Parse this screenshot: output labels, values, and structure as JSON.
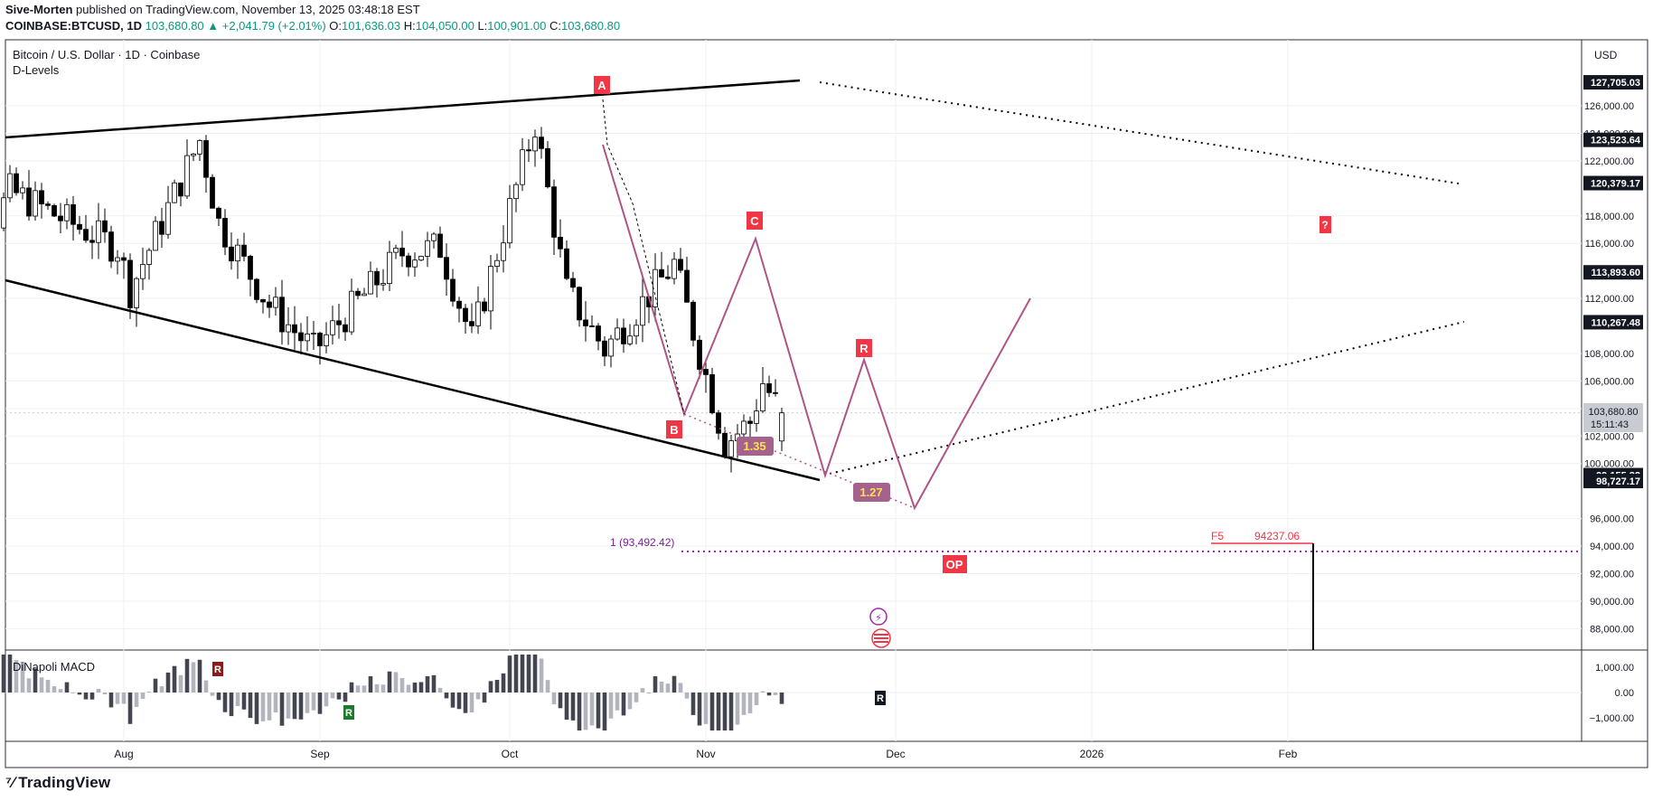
{
  "header": {
    "author": "Sive-Morten",
    "published": "published on TradingView.com, November 13, 2025 03:48:18 EST",
    "symbol": "COINBASE:BTCUSD, 1D",
    "change": "103,680.80 ▲ +2,041.79 (+2.01%)",
    "o_label": "O:",
    "o": "101,636.03",
    "h_label": "H:",
    "h": "104,050.00",
    "l_label": "L:",
    "l": "100,901.00",
    "c_label": "C:",
    "c": "103,680.80"
  },
  "legend": {
    "title": "Bitcoin / U.S. Dollar · 1D · Coinbase",
    "indicator": "D-Levels",
    "macd_title": "DiNapoli MACD"
  },
  "axis": {
    "currency": "USD",
    "time_labels": [
      "Aug",
      "Sep",
      "Oct",
      "Nov",
      "Dec",
      "2026",
      "Feb"
    ],
    "price_ticks": [
      "126,000.00",
      "124,000.00",
      "122,000.00",
      "118,000.00",
      "116,000.00",
      "112,000.00",
      "108,000.00",
      "106,000.00",
      "104,000.00",
      "102,000.00",
      "100,000.00",
      "96,000.00",
      "94,000.00",
      "92,000.00",
      "90,000.00",
      "88,000.00"
    ],
    "macd_ticks": [
      "1,000.00",
      "0.00",
      "−1,000.00"
    ],
    "price_tags": [
      "127,705.03",
      "123,523.64",
      "120,379.17",
      "113,893.60",
      "110,267.48",
      "99,155.32",
      "98,727.17"
    ],
    "last_price": "103,680.80",
    "countdown": "15:11:43"
  },
  "annotations": {
    "A": "A",
    "B": "B",
    "C": "C",
    "R": "R",
    "Q": "?",
    "ext1": "1.35",
    "ext2": "1.27",
    "level_1": "1 (93,492.42)",
    "f5": "F5",
    "f5_value": "94237.06",
    "op": "OP"
  },
  "brand": "TradingView",
  "colors": {
    "up": "#ffffff",
    "down": "#000000",
    "wick": "#000000",
    "pattern": "#b05487",
    "marker": "#f23645",
    "macd_dark": "#434651",
    "macd_light": "#b2b5be",
    "level_line": "#9c27b0",
    "f5": "#f23645"
  },
  "chart_data": {
    "type": "candlestick",
    "title": "Bitcoin / U.S. Dollar · 1D · Coinbase",
    "ylabel": "USD",
    "ylim": [
      86000,
      128500
    ],
    "x": [
      "2025-07-03",
      "2025-08-01",
      "2025-09-01",
      "2025-10-01",
      "2025-11-01",
      "2025-12-01",
      "2026-01-01",
      "2026-02-01"
    ],
    "close_path": [
      {
        "date": "2025-07-03",
        "close": 109500
      },
      {
        "date": "2025-07-14",
        "close": 119800
      },
      {
        "date": "2025-07-31",
        "close": 115700
      },
      {
        "date": "2025-08-02",
        "close": 112600
      },
      {
        "date": "2025-08-13",
        "close": 123500
      },
      {
        "date": "2025-08-16",
        "close": 117500
      },
      {
        "date": "2025-08-24",
        "close": 111500
      },
      {
        "date": "2025-08-31",
        "close": 108200
      },
      {
        "date": "2025-09-14",
        "close": 115300
      },
      {
        "date": "2025-09-20",
        "close": 115700
      },
      {
        "date": "2025-09-25",
        "close": 109000
      },
      {
        "date": "2025-10-01",
        "close": 118500
      },
      {
        "date": "2025-10-05",
        "close": 124700
      },
      {
        "date": "2025-10-10",
        "close": 112500
      },
      {
        "date": "2025-10-16",
        "close": 108300
      },
      {
        "date": "2025-10-27",
        "close": 114500
      },
      {
        "date": "2025-11-04",
        "close": 101500
      },
      {
        "date": "2025-11-08",
        "close": 103000
      },
      {
        "date": "2025-11-10",
        "close": 105900
      },
      {
        "date": "2025-11-13",
        "close": 103680.8
      }
    ],
    "last": {
      "open": 101636.03,
      "high": 104050.0,
      "low": 100901.0,
      "close": 103680.8,
      "change": 2041.79,
      "change_pct": 2.01
    },
    "price_levels": [
      127705.03,
      123523.64,
      120379.17,
      113893.6,
      110267.48,
      99155.32,
      98727.17
    ],
    "pattern_points": {
      "A": 126200,
      "B": 103500,
      "C": 116400,
      "R": 107500
    },
    "extensions": [
      1.35,
      1.27
    ],
    "level_1": 93492.42,
    "f5": 94237.06,
    "macd_ylim": [
      -1500,
      1500
    ]
  }
}
